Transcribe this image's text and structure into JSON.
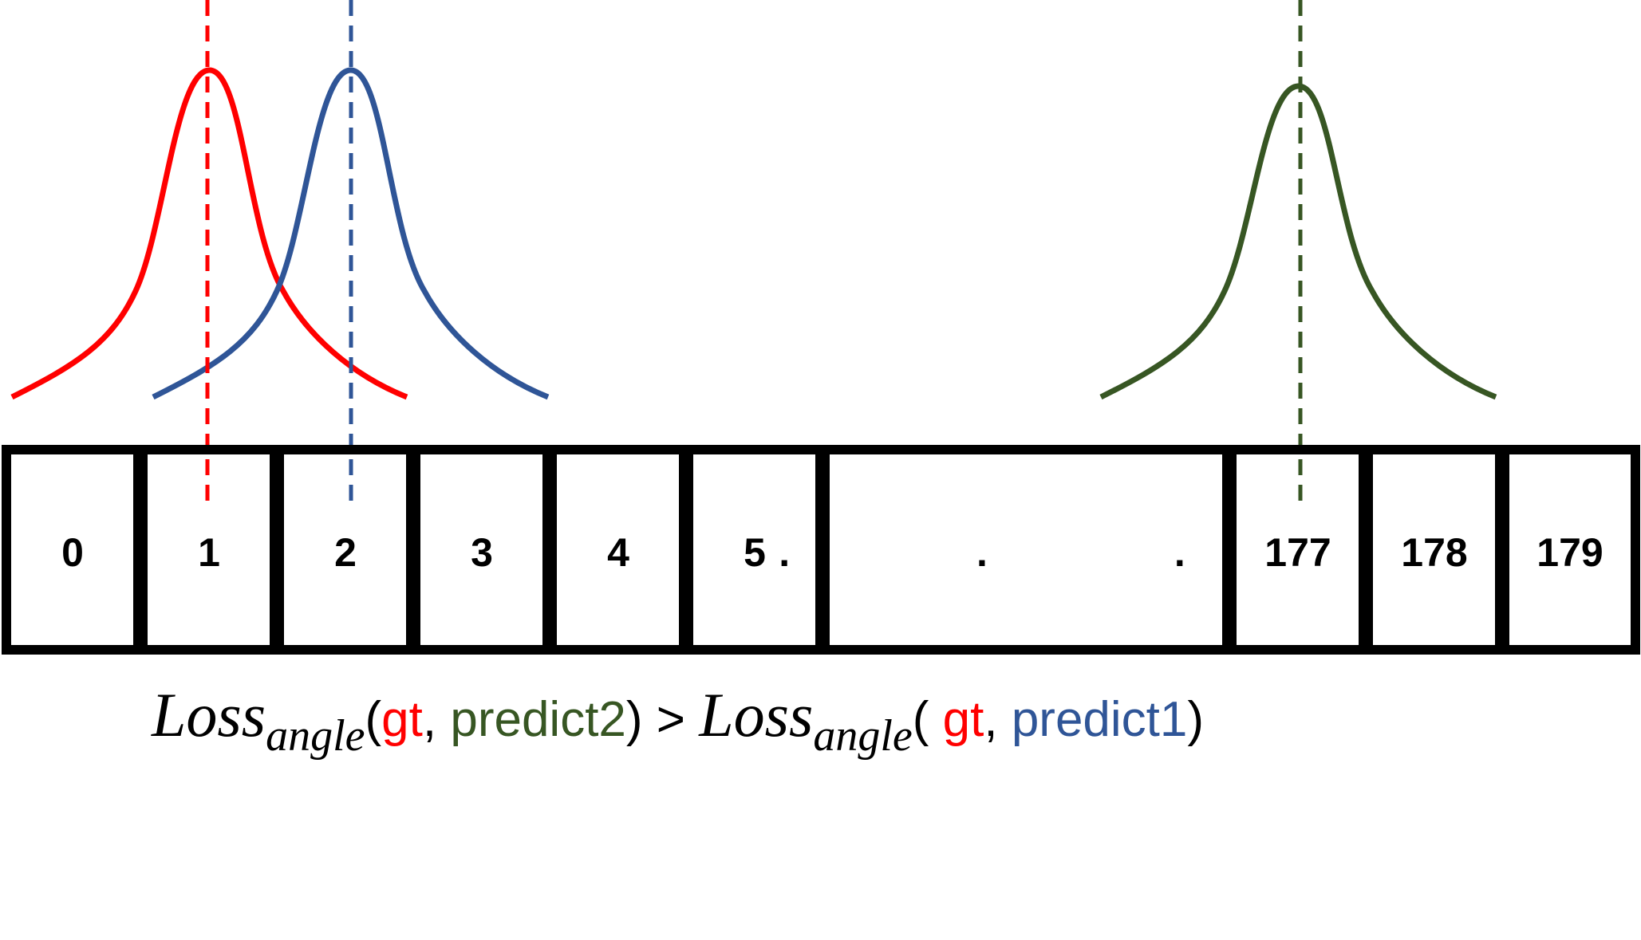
{
  "colors": {
    "gt": "#ff0000",
    "predict1": "#2f5597",
    "predict2": "#375623",
    "text": "#000000"
  },
  "bins": {
    "labels": [
      "0",
      "1",
      "2",
      "3",
      "4",
      "5",
      ". . .",
      "177",
      "178",
      "179"
    ]
  },
  "formula": {
    "loss_symbol": "Loss",
    "subscript": "angle",
    "open_paren_1": "(",
    "gt_1": "gt",
    "comma_1": ", ",
    "predict2": "predict2",
    "close_paren_1": ")",
    "comparator": " > ",
    "open_paren_2": "( ",
    "gt_2": "gt",
    "comma_2": ", ",
    "predict1": "predict1",
    "close_paren_2": ")"
  }
}
